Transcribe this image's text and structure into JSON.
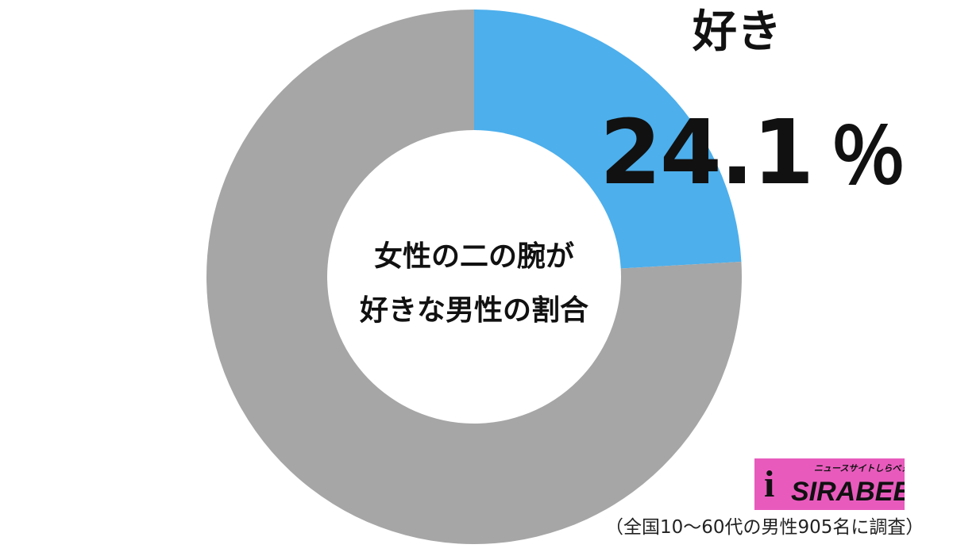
{
  "chart_data": {
    "type": "pie",
    "donut": true,
    "title": "女性の二の腕が好きな男性の割合",
    "title_lines": [
      "女性の二の腕が",
      "好きな男性の割合"
    ],
    "slices": [
      {
        "label": "好き",
        "value": 24.1,
        "color": "#4dafec"
      },
      {
        "value": 75.9,
        "color": "#a6a6a6"
      }
    ],
    "highlight": {
      "label": "好き",
      "value": "24.1",
      "unit": "％"
    }
  },
  "logo": {
    "sub": "ニュースサイトしらべぇ",
    "main": "SIRABEE",
    "i": "i"
  },
  "footnote": "（全国10〜60代の男性905名に調査）"
}
